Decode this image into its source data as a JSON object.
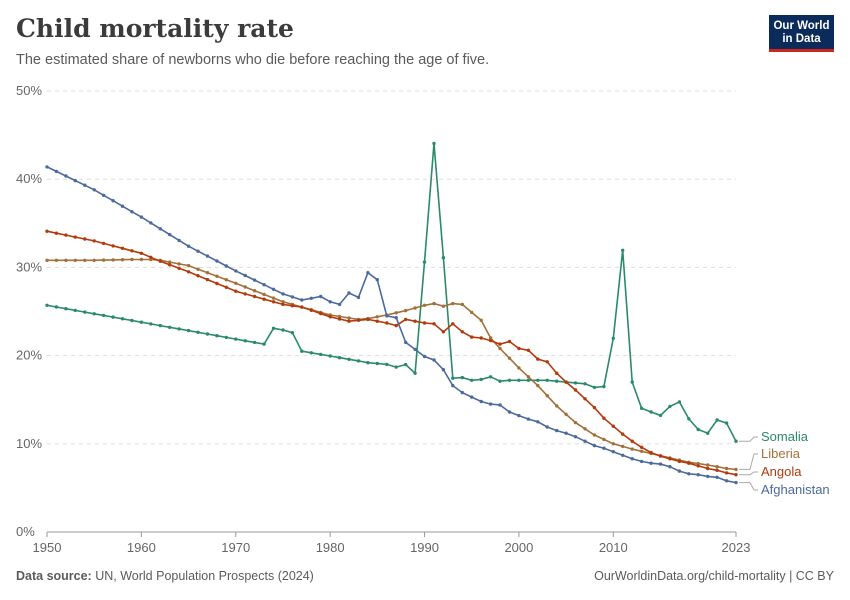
{
  "header": {
    "title": "Child mortality rate",
    "subtitle": "The estimated share of newborns who die before reaching the age of five.",
    "logo_line1": "Our World",
    "logo_line2": "in Data"
  },
  "footer": {
    "source_label": "Data source:",
    "source_text": "UN, World Population Prospects (2024)",
    "link_text": "OurWorldinData.org/child-mortality | CC BY"
  },
  "chart_data": {
    "type": "line",
    "title": "Child mortality rate",
    "subtitle": "The estimated share of newborns who die before reaching the age of five.",
    "xlim": [
      1950,
      2023
    ],
    "ylim": [
      0,
      50
    ],
    "x_ticks": [
      1950,
      1960,
      1970,
      1980,
      1990,
      2000,
      2010,
      2023
    ],
    "y_ticks": [
      0,
      10,
      20,
      30,
      40,
      50
    ],
    "y_tick_labels": [
      "0%",
      "10%",
      "20%",
      "30%",
      "40%",
      "50%"
    ],
    "grid": "horizontal dashed",
    "legend": "inline labels at right end of lines",
    "series": [
      {
        "name": "Somalia",
        "color": "#2a8a6a",
        "anchors": [
          [
            1950,
            25.7
          ],
          [
            1973,
            21.3
          ],
          [
            1973.5,
            23.2
          ],
          [
            1975,
            22.9
          ],
          [
            1976,
            22.6
          ],
          [
            1976.6,
            20.6
          ],
          [
            1977,
            20.5
          ],
          [
            1983,
            19.4
          ],
          [
            1984,
            19.2
          ],
          [
            1986,
            19.0
          ],
          [
            1987,
            18.7
          ],
          [
            1987.7,
            19.5
          ],
          [
            1988.5,
            18.1
          ],
          [
            1989.5,
            17.9
          ],
          [
            1990.5,
            43.3
          ],
          [
            1991.5,
            44.8
          ],
          [
            1992.5,
            17.4
          ],
          [
            1994,
            17.5
          ],
          [
            1995,
            17.2
          ],
          [
            1996,
            17.3
          ],
          [
            1997,
            17.6
          ],
          [
            1998,
            17.1
          ],
          [
            1999,
            17.2
          ],
          [
            2003,
            17.2
          ],
          [
            2004,
            17.1
          ],
          [
            2006,
            16.9
          ],
          [
            2007,
            16.8
          ],
          [
            2008,
            16.4
          ],
          [
            2008.8,
            16.0
          ],
          [
            2009.8,
            18.5
          ],
          [
            2010.8,
            35.8
          ],
          [
            2011.7,
            18.4
          ],
          [
            2012.6,
            14.2
          ],
          [
            2013.5,
            13.8
          ],
          [
            2014.5,
            13.4
          ],
          [
            2015.6,
            13.0
          ],
          [
            2016.5,
            15.8
          ],
          [
            2017.5,
            13.7
          ],
          [
            2018.6,
            11.8
          ],
          [
            2019.5,
            11.4
          ],
          [
            2020.5,
            11.0
          ],
          [
            2021.5,
            14.4
          ],
          [
            2022.5,
            10.3
          ]
        ]
      },
      {
        "name": "Liberia",
        "color": "#a3703a",
        "anchors": [
          [
            1950,
            30.8
          ],
          [
            1955,
            30.8
          ],
          [
            1959,
            30.9
          ],
          [
            1961,
            30.9
          ],
          [
            1962,
            30.8
          ],
          [
            1965,
            30.2
          ],
          [
            1970,
            28.2
          ],
          [
            1975,
            26.1
          ],
          [
            1980,
            24.6
          ],
          [
            1983,
            24.1
          ],
          [
            1984,
            24.2
          ],
          [
            1986,
            24.6
          ],
          [
            1988,
            25.1
          ],
          [
            1990,
            25.7
          ],
          [
            1991,
            25.9
          ],
          [
            1992,
            25.6
          ],
          [
            1993,
            25.9
          ],
          [
            1994,
            25.8
          ],
          [
            1996,
            24.0
          ],
          [
            1997,
            22.0
          ],
          [
            1998,
            20.8
          ],
          [
            2000,
            18.6
          ],
          [
            2002,
            16.6
          ],
          [
            2004,
            14.3
          ],
          [
            2006,
            12.4
          ],
          [
            2008,
            11.0
          ],
          [
            2010,
            10.0
          ],
          [
            2012,
            9.4
          ],
          [
            2014,
            8.9
          ],
          [
            2016,
            8.4
          ],
          [
            2018,
            7.9
          ],
          [
            2020,
            7.6
          ],
          [
            2022,
            7.2
          ],
          [
            2022.5,
            7.1
          ]
        ]
      },
      {
        "name": "Angola",
        "color": "#b23a0c",
        "anchors": [
          [
            1950,
            34.1
          ],
          [
            1955,
            33.0
          ],
          [
            1960,
            31.6
          ],
          [
            1962,
            30.7
          ],
          [
            1965,
            29.5
          ],
          [
            1970,
            27.3
          ],
          [
            1975,
            25.8
          ],
          [
            1977,
            25.5
          ],
          [
            1980,
            24.4
          ],
          [
            1982,
            23.9
          ],
          [
            1984,
            24.1
          ],
          [
            1986,
            23.7
          ],
          [
            1987,
            23.4
          ],
          [
            1988,
            24.1
          ],
          [
            1989,
            23.9
          ],
          [
            1990,
            23.7
          ],
          [
            1991,
            23.6
          ],
          [
            1992,
            22.7
          ],
          [
            1993,
            23.6
          ],
          [
            1994,
            22.7
          ],
          [
            1995,
            22.1
          ],
          [
            1996,
            22.0
          ],
          [
            1997,
            21.7
          ],
          [
            1998,
            21.3
          ],
          [
            1999,
            21.6
          ],
          [
            2000,
            20.8
          ],
          [
            2001,
            20.6
          ],
          [
            2002,
            19.6
          ],
          [
            2003,
            19.3
          ],
          [
            2004,
            18.0
          ],
          [
            2005,
            17.0
          ],
          [
            2006,
            16.1
          ],
          [
            2007,
            15.1
          ],
          [
            2008,
            14.1
          ],
          [
            2009,
            12.9
          ],
          [
            2010,
            12.0
          ],
          [
            2011,
            11.1
          ],
          [
            2012,
            10.3
          ],
          [
            2013,
            9.6
          ],
          [
            2014,
            9.0
          ],
          [
            2015,
            8.6
          ],
          [
            2016,
            8.3
          ],
          [
            2017,
            8.0
          ],
          [
            2018,
            7.8
          ],
          [
            2019,
            7.5
          ],
          [
            2020,
            7.2
          ],
          [
            2021,
            7.0
          ],
          [
            2022,
            6.7
          ],
          [
            2022.5,
            6.5
          ]
        ]
      },
      {
        "name": "Afghanistan",
        "color": "#4c6a9c",
        "anchors": [
          [
            1950,
            41.4
          ],
          [
            1955,
            38.8
          ],
          [
            1960,
            35.7
          ],
          [
            1965,
            32.4
          ],
          [
            1970,
            29.6
          ],
          [
            1975,
            27.0
          ],
          [
            1977,
            26.3
          ],
          [
            1978,
            26.5
          ],
          [
            1979,
            26.7
          ],
          [
            1980,
            26.1
          ],
          [
            1981,
            25.8
          ],
          [
            1982,
            27.1
          ],
          [
            1983,
            26.6
          ],
          [
            1984,
            29.4
          ],
          [
            1985,
            28.6
          ],
          [
            1986,
            24.5
          ],
          [
            1987,
            24.3
          ],
          [
            1988,
            21.5
          ],
          [
            1990,
            19.9
          ],
          [
            1991,
            19.5
          ],
          [
            1992,
            18.4
          ],
          [
            1993,
            16.6
          ],
          [
            1994,
            15.8
          ],
          [
            1995,
            15.3
          ],
          [
            1996,
            14.8
          ],
          [
            1997,
            14.5
          ],
          [
            1998,
            14.4
          ],
          [
            1999,
            13.6
          ],
          [
            2000,
            13.2
          ],
          [
            2001,
            12.8
          ],
          [
            2002,
            12.5
          ],
          [
            2003,
            11.9
          ],
          [
            2004,
            11.5
          ],
          [
            2005,
            11.2
          ],
          [
            2006,
            10.8
          ],
          [
            2007,
            10.3
          ],
          [
            2008,
            9.8
          ],
          [
            2009,
            9.5
          ],
          [
            2010,
            9.1
          ],
          [
            2011,
            8.7
          ],
          [
            2012,
            8.3
          ],
          [
            2013,
            8.0
          ],
          [
            2014,
            7.8
          ],
          [
            2015,
            7.7
          ],
          [
            2016,
            7.4
          ],
          [
            2017,
            6.9
          ],
          [
            2018,
            6.6
          ],
          [
            2019,
            6.5
          ],
          [
            2020,
            6.3
          ],
          [
            2021,
            6.2
          ],
          [
            2022,
            5.8
          ],
          [
            2022.5,
            5.6
          ]
        ]
      }
    ]
  }
}
